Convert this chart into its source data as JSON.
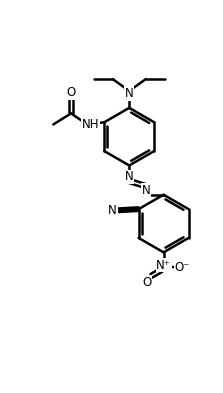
{
  "bg_color": "#ffffff",
  "line_color": "#000000",
  "line_width": 1.8,
  "font_size": 8.5,
  "figsize": [
    2.23,
    3.93
  ],
  "dpi": 100,
  "xlim": [
    0,
    10
  ],
  "ylim": [
    0,
    17.6
  ]
}
